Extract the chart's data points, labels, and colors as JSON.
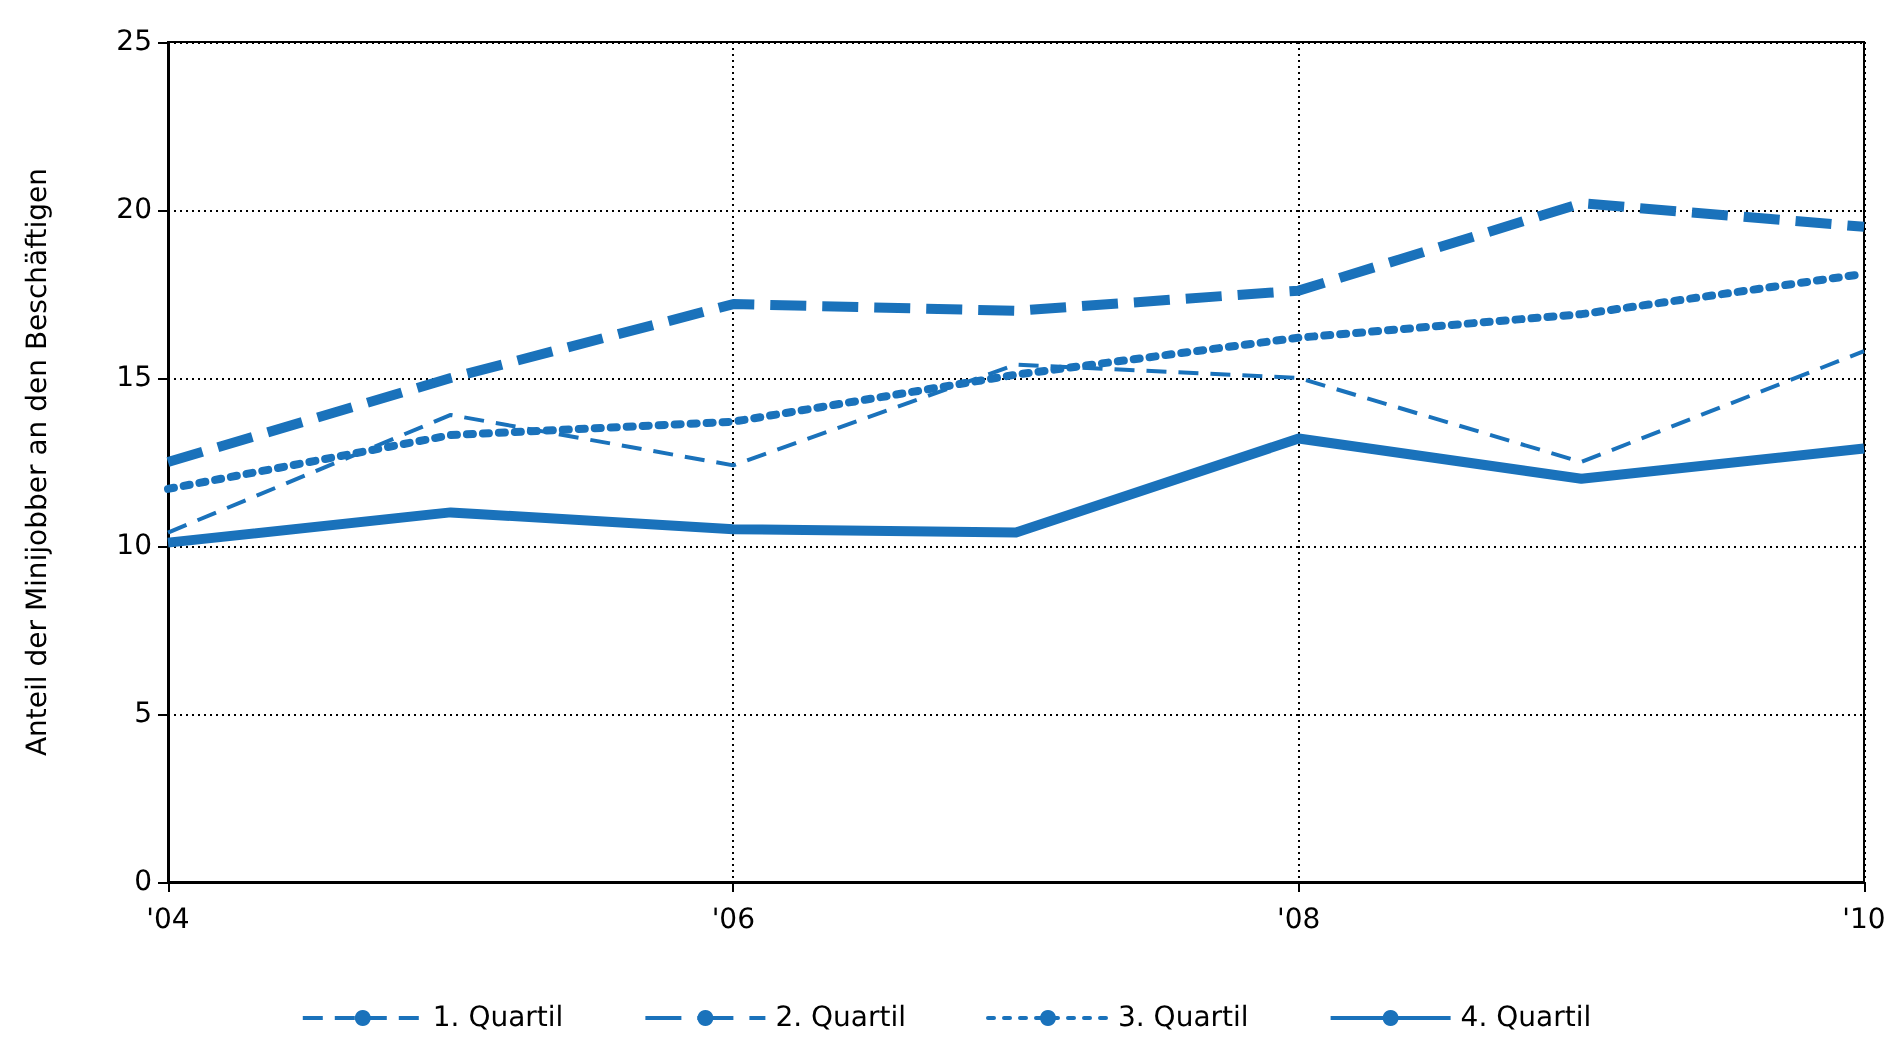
{
  "chart_data": {
    "type": "line",
    "ylabel": "Anteil der Minijobber an den Beschäftigen",
    "x": [
      2004,
      2005,
      2006,
      2007,
      2008,
      2009,
      2010
    ],
    "xlim": [
      2004,
      2010
    ],
    "xticks": [
      {
        "value": 2004,
        "label": "'04"
      },
      {
        "value": 2006,
        "label": "'06"
      },
      {
        "value": 2008,
        "label": "'08"
      },
      {
        "value": 2010,
        "label": "'10"
      }
    ],
    "ylim": [
      0,
      25
    ],
    "yticks": [
      0,
      5,
      10,
      15,
      20,
      25
    ],
    "grid": true,
    "legend": "bottom",
    "marker": "none",
    "series": [
      {
        "name": "1. Quartil",
        "color": "#1a72bb",
        "line_style": "dashed",
        "values": [
          10.4,
          13.9,
          12.4,
          15.4,
          15.0,
          12.5,
          15.8
        ]
      },
      {
        "name": "2. Quartil",
        "color": "#1a72bb",
        "line_style": "dashed",
        "values": [
          12.5,
          15.0,
          17.2,
          17.0,
          17.6,
          20.2,
          19.5
        ]
      },
      {
        "name": "3. Quartil",
        "color": "#1a72bb",
        "line_style": "dotted",
        "values": [
          11.7,
          13.3,
          13.7,
          15.1,
          16.2,
          16.9,
          18.1
        ]
      },
      {
        "name": "4. Quartil",
        "color": "#1a72bb",
        "line_style": "solid",
        "values": [
          10.1,
          11.0,
          10.5,
          10.4,
          13.2,
          12.0,
          12.9
        ]
      }
    ]
  }
}
